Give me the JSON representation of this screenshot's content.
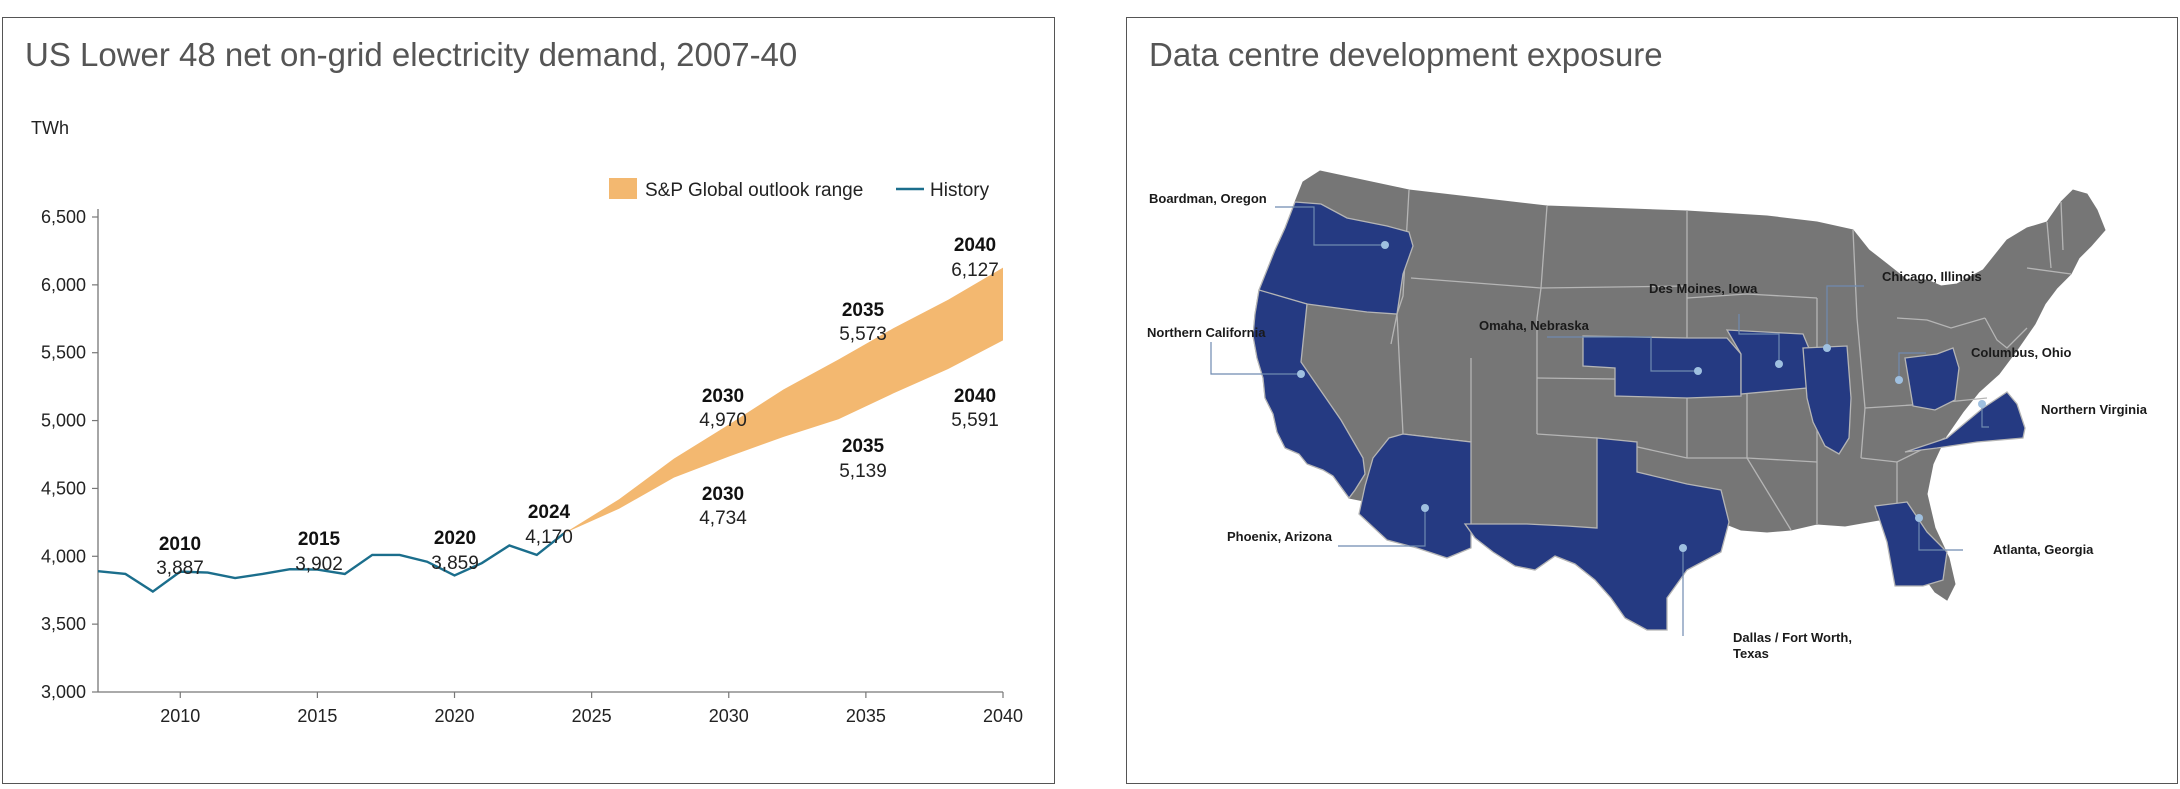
{
  "chart_data": [
    {
      "type": "line",
      "title": "US Lower 48 net on-grid electricity demand, 2007-40",
      "ylabel": "TWh",
      "xlabel": "",
      "xlim": [
        2007,
        2040
      ],
      "ylim": [
        3000,
        6500
      ],
      "xticks": [
        2010,
        2015,
        2020,
        2025,
        2030,
        2035,
        2040
      ],
      "yticks": [
        3000,
        3500,
        4000,
        4500,
        5000,
        5500,
        6000,
        6500
      ],
      "ytick_labels": [
        "3,000",
        "3,500",
        "4,000",
        "4,500",
        "5,000",
        "5,500",
        "6,000",
        "6,500"
      ],
      "legend": {
        "position": "top-right",
        "entries": [
          {
            "label": "S&P Global outlook range",
            "color": "#F3B870",
            "kind": "area"
          },
          {
            "label": "History",
            "color": "#1B6E8C",
            "kind": "line"
          }
        ]
      },
      "series": [
        {
          "name": "History",
          "color": "#1B6E8C",
          "x": [
            2007,
            2008,
            2009,
            2010,
            2011,
            2012,
            2013,
            2014,
            2015,
            2016,
            2017,
            2018,
            2019,
            2020,
            2021,
            2022,
            2023,
            2024
          ],
          "values": [
            3890,
            3870,
            3740,
            3887,
            3880,
            3840,
            3870,
            3905,
            3902,
            3870,
            4010,
            4010,
            3960,
            3859,
            3950,
            4080,
            4010,
            4170
          ]
        },
        {
          "name": "S&P Global outlook range",
          "color": "#F3B870",
          "type": "area",
          "x": [
            2024,
            2026,
            2028,
            2030,
            2032,
            2034,
            2036,
            2038,
            2040
          ],
          "upper": [
            4170,
            4420,
            4720,
            4970,
            5230,
            5450,
            5680,
            5890,
            6127
          ],
          "lower": [
            4170,
            4350,
            4580,
            4734,
            4880,
            5010,
            5200,
            5380,
            5591
          ]
        }
      ],
      "annotations": [
        {
          "year": "2010",
          "value": "3,887"
        },
        {
          "year": "2015",
          "value": "3,902"
        },
        {
          "year": "2020",
          "value": "3,859"
        },
        {
          "year": "2024",
          "value": "4,170"
        },
        {
          "year": "2030",
          "value": "4,970"
        },
        {
          "year": "2030",
          "value": "4,734"
        },
        {
          "year": "2035",
          "value": "5,573"
        },
        {
          "year": "2035",
          "value": "5,139"
        },
        {
          "year": "2040",
          "value": "6,127"
        },
        {
          "year": "2040",
          "value": "5,591"
        }
      ]
    },
    {
      "type": "map",
      "title": "Data centre development exposure",
      "colors": {
        "highlight": "#253A82",
        "other": "#767676",
        "border": "#B5B5B5",
        "marker": "#9FC0E0",
        "leader": "#6F8AB0"
      },
      "labels": [
        "Boardman, Oregon",
        "Northern California",
        "Phoenix, Arizona",
        "Omaha, Nebraska",
        "Des Moines, Iowa",
        "Chicago, Illinois",
        "Columbus, Ohio",
        "Northern Virginia",
        "Atlanta, Georgia",
        "Dallas / Fort Worth,",
        "Texas"
      ]
    }
  ]
}
